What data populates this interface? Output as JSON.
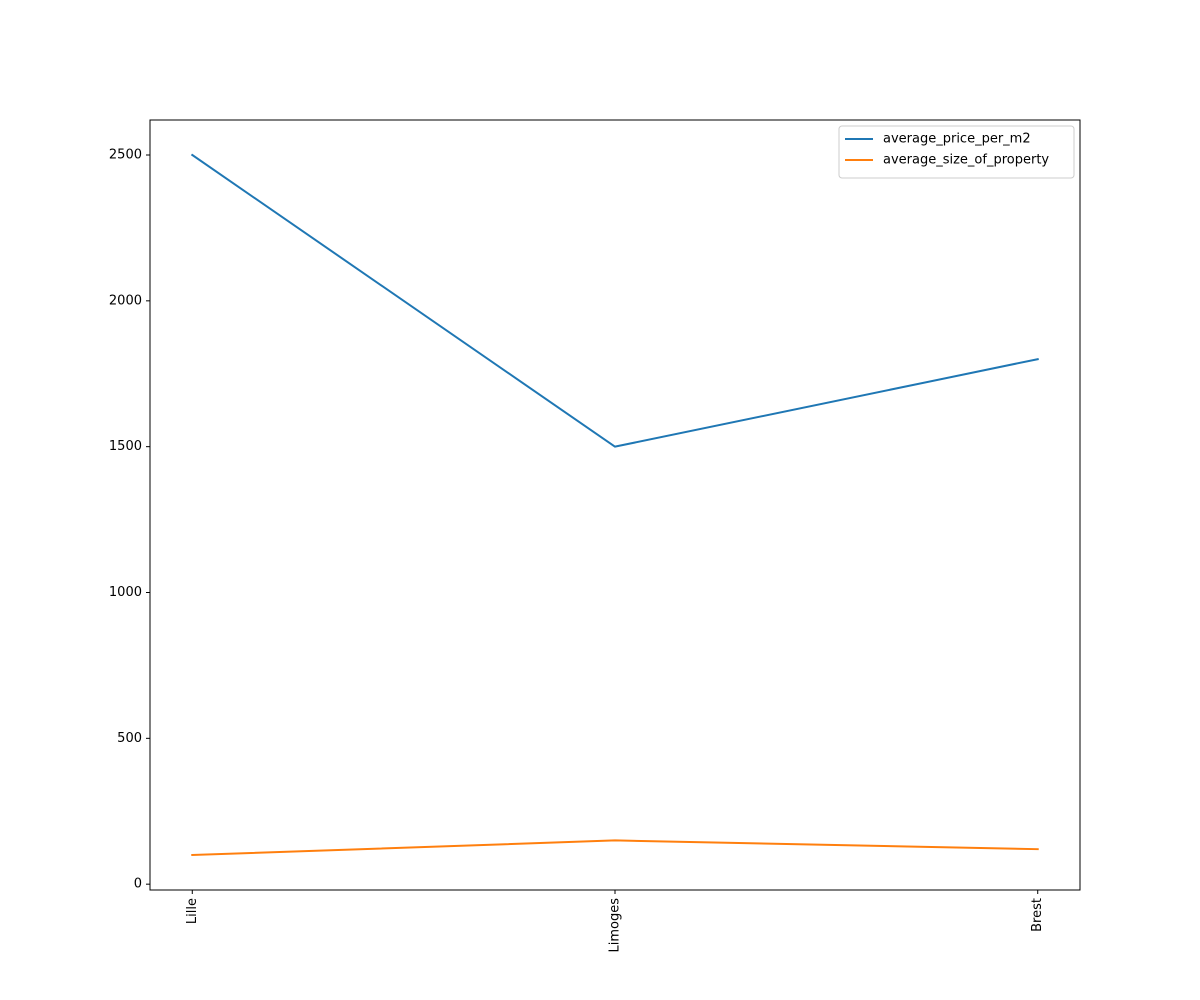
{
  "chart_data": {
    "type": "line",
    "categories": [
      "Lille",
      "Limoges",
      "Brest"
    ],
    "series": [
      {
        "name": "average_price_per_m2",
        "color": "#1f77b4",
        "values": [
          2500,
          1500,
          1800
        ]
      },
      {
        "name": "average_size_of_property",
        "color": "#ff7f0e",
        "values": [
          100,
          150,
          120
        ]
      }
    ],
    "xlim": [
      -0.1,
      2.1
    ],
    "ylim": [
      -20,
      2620
    ],
    "yticks": [
      0,
      500,
      1000,
      1500,
      2000,
      2500
    ],
    "grid": false,
    "legend": "upper right"
  }
}
